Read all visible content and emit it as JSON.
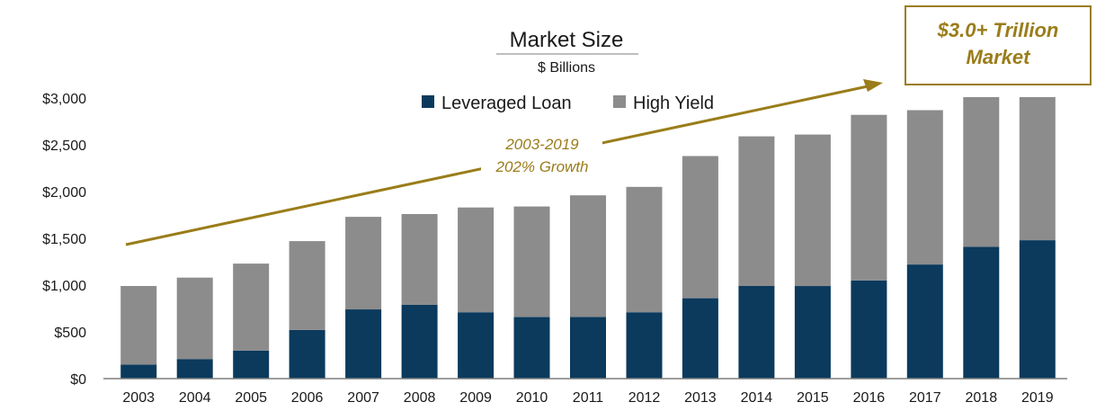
{
  "colors": {
    "leveraged_loan": "#0b3a5d",
    "high_yield": "#8c8c8c",
    "accent_gold": "#9a7d1a",
    "axis": "#7f7f7f"
  },
  "callout": {
    "line1": "$3.0+ Trillion",
    "line2": "Market"
  },
  "growth_annotation": {
    "line1": "2003-2019",
    "line2": "202% Growth"
  },
  "chart_data": {
    "type": "bar",
    "stacked": true,
    "title": "Market Size",
    "subtitle": "$ Billions",
    "xlabel": "",
    "ylabel": "",
    "ylim": [
      0,
      3000
    ],
    "yticks": [
      0,
      500,
      1000,
      1500,
      2000,
      2500,
      3000
    ],
    "ytick_labels": [
      "$0",
      "$500",
      "$1,000",
      "$1,500",
      "$2,000",
      "$2,500",
      "$3,000"
    ],
    "legend_position": "top-center",
    "grid": false,
    "categories": [
      "2003",
      "2004",
      "2005",
      "2006",
      "2007",
      "2008",
      "2009",
      "2010",
      "2011",
      "2012",
      "2013",
      "2014",
      "2015",
      "2016",
      "2017",
      "2018",
      "2019"
    ],
    "series": [
      {
        "name": "Leveraged Loan",
        "values": [
          150,
          210,
          300,
          520,
          740,
          790,
          710,
          660,
          660,
          710,
          860,
          990,
          990,
          1050,
          1220,
          1410,
          1480
        ]
      },
      {
        "name": "High Yield",
        "values": [
          840,
          870,
          930,
          950,
          990,
          970,
          1120,
          1180,
          1300,
          1340,
          1520,
          1600,
          1620,
          1770,
          1650,
          1600,
          1530
        ]
      }
    ]
  }
}
